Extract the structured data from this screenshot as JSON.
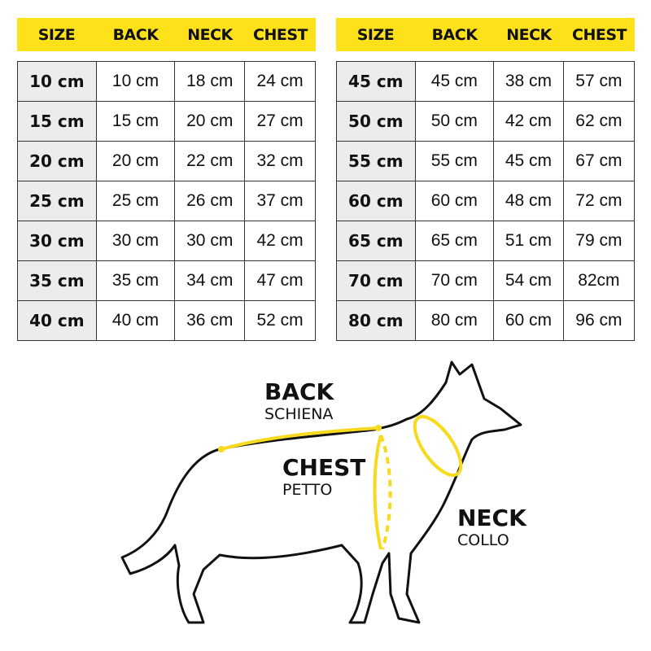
{
  "headers": [
    "SIZE",
    "BACK",
    "NECK",
    "CHEST"
  ],
  "left_table": [
    [
      "10 cm",
      "10 cm",
      "18 cm",
      "24 cm"
    ],
    [
      "15 cm",
      "15 cm",
      "20 cm",
      "27 cm"
    ],
    [
      "20 cm",
      "20 cm",
      "22 cm",
      "32 cm"
    ],
    [
      "25 cm",
      "25 cm",
      "26 cm",
      "37 cm"
    ],
    [
      "30 cm",
      "30 cm",
      "30 cm",
      "42 cm"
    ],
    [
      "35 cm",
      "35 cm",
      "34 cm",
      "47 cm"
    ],
    [
      "40 cm",
      "40 cm",
      "36 cm",
      "52 cm"
    ]
  ],
  "right_table": [
    [
      "45 cm",
      "45 cm",
      "38 cm",
      "57 cm"
    ],
    [
      "50 cm",
      "50 cm",
      "42 cm",
      "62 cm"
    ],
    [
      "55 cm",
      "55 cm",
      "45 cm",
      "67 cm"
    ],
    [
      "60 cm",
      "60 cm",
      "48 cm",
      "72 cm"
    ],
    [
      "65 cm",
      "65 cm",
      "51 cm",
      "79 cm"
    ],
    [
      "70 cm",
      "70 cm",
      "54 cm",
      "82cm"
    ],
    [
      "80 cm",
      "80 cm",
      "60 cm",
      "96 cm"
    ]
  ],
  "diagram": {
    "back": {
      "title": "BACK",
      "subtitle": "SCHIENA"
    },
    "chest": {
      "title": "CHEST",
      "subtitle": "PETTO"
    },
    "neck": {
      "title": "NECK",
      "subtitle": "COLLO"
    }
  },
  "colors": {
    "header": "#FDE11B",
    "size_cell": "#ececec",
    "measure_line": "#F7DA1E"
  }
}
